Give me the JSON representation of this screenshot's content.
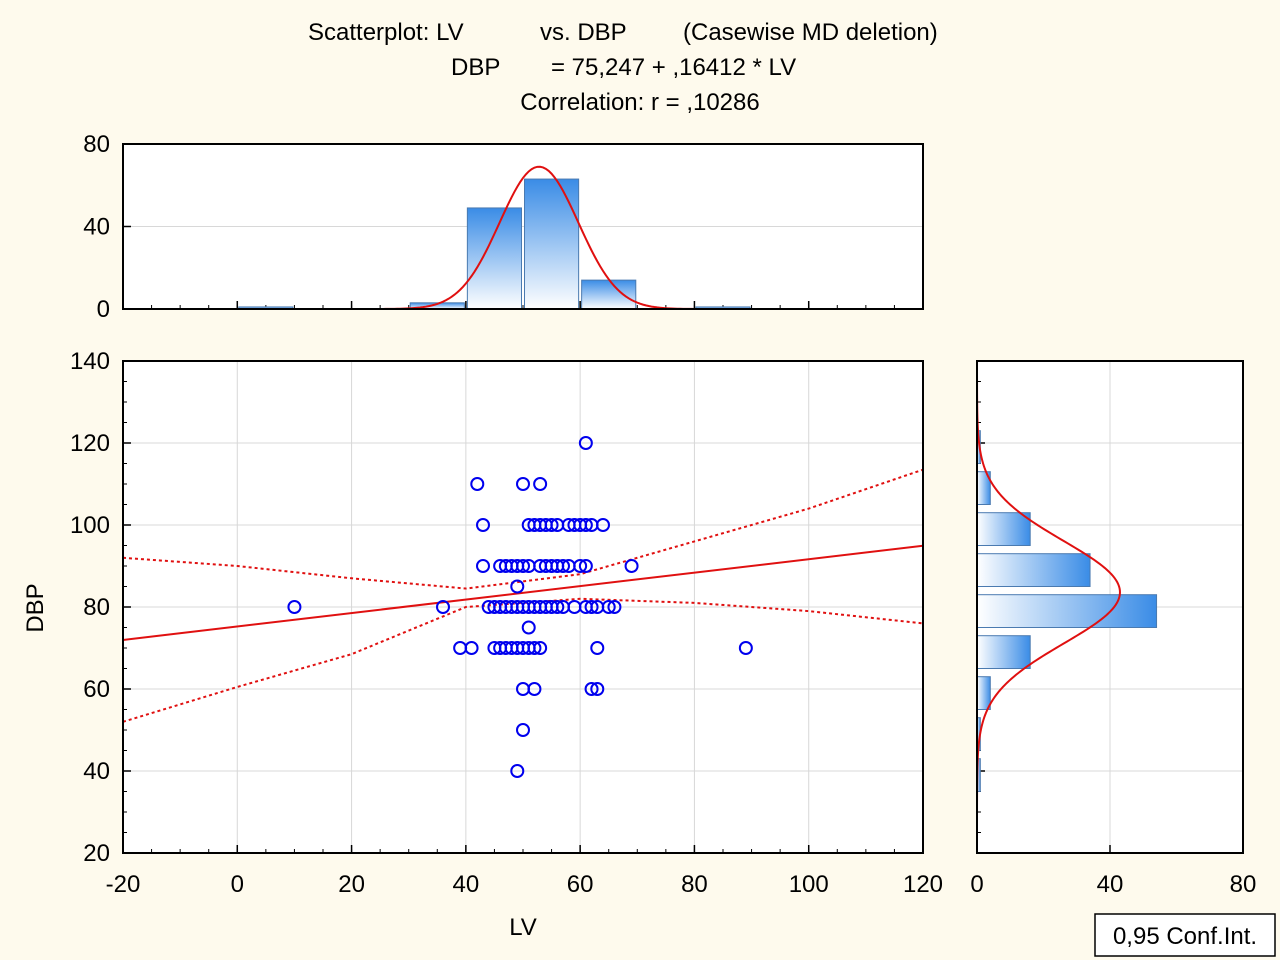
{
  "title": {
    "line1": [
      "Scatterplot: LV",
      "vs. DBP",
      "(Casewise MD deletion)"
    ],
    "line2": [
      "DBP",
      "= 75,247 + ,16412 * LV"
    ],
    "line3": "Correlation: r = ,10286"
  },
  "legend": {
    "label": "0,95 Conf.Int.",
    "position": "bottom-right"
  },
  "colors": {
    "background": "#fefaed",
    "points": "#0000ee",
    "fit": "#e01010",
    "bar_dark": "#3a8ce6",
    "bar_light": "#ffffff",
    "bar_border": "#4a7ab0",
    "grid": "#d8d8d8"
  },
  "chart_data": [
    {
      "id": "scatter",
      "type": "scatter",
      "xlabel": "LV",
      "ylabel": "DBP",
      "xlim": [
        -20,
        120
      ],
      "ylim": [
        20,
        140
      ],
      "xticks": [
        "-20",
        "0",
        "20",
        "40",
        "60",
        "80",
        "100",
        "120"
      ],
      "yticks": [
        "20",
        "40",
        "60",
        "80",
        "100",
        "120",
        "140"
      ],
      "grid": true,
      "points": [
        [
          10,
          80
        ],
        [
          36,
          80
        ],
        [
          44,
          80
        ],
        [
          45,
          80
        ],
        [
          46,
          80
        ],
        [
          47,
          80
        ],
        [
          48,
          80
        ],
        [
          49,
          80
        ],
        [
          50,
          80
        ],
        [
          51,
          80
        ],
        [
          52,
          80
        ],
        [
          53,
          80
        ],
        [
          54,
          80
        ],
        [
          55,
          80
        ],
        [
          56,
          80
        ],
        [
          57,
          80
        ],
        [
          59,
          80
        ],
        [
          61,
          80
        ],
        [
          62,
          80
        ],
        [
          63,
          80
        ],
        [
          65,
          80
        ],
        [
          66,
          80
        ],
        [
          43,
          90
        ],
        [
          46,
          90
        ],
        [
          47,
          90
        ],
        [
          48,
          90
        ],
        [
          49,
          90
        ],
        [
          50,
          90
        ],
        [
          51,
          90
        ],
        [
          53,
          90
        ],
        [
          54,
          90
        ],
        [
          55,
          90
        ],
        [
          56,
          90
        ],
        [
          57,
          90
        ],
        [
          58,
          90
        ],
        [
          60,
          90
        ],
        [
          61,
          90
        ],
        [
          69,
          90
        ],
        [
          43,
          100
        ],
        [
          51,
          100
        ],
        [
          52,
          100
        ],
        [
          53,
          100
        ],
        [
          54,
          100
        ],
        [
          55,
          100
        ],
        [
          56,
          100
        ],
        [
          58,
          100
        ],
        [
          59,
          100
        ],
        [
          60,
          100
        ],
        [
          61,
          100
        ],
        [
          62,
          100
        ],
        [
          64,
          100
        ],
        [
          42,
          110
        ],
        [
          50,
          110
        ],
        [
          53,
          110
        ],
        [
          61,
          120
        ],
        [
          39,
          70
        ],
        [
          41,
          70
        ],
        [
          45,
          70
        ],
        [
          46,
          70
        ],
        [
          47,
          70
        ],
        [
          48,
          70
        ],
        [
          49,
          70
        ],
        [
          50,
          70
        ],
        [
          51,
          70
        ],
        [
          52,
          70
        ],
        [
          53,
          70
        ],
        [
          63,
          70
        ],
        [
          89,
          70
        ],
        [
          49,
          85
        ],
        [
          51,
          75
        ],
        [
          50,
          60
        ],
        [
          52,
          60
        ],
        [
          62,
          60
        ],
        [
          63,
          60
        ],
        [
          50,
          50
        ],
        [
          49,
          40
        ]
      ],
      "regression": {
        "intercept": 75.247,
        "slope": 0.16412
      },
      "confidence_band": {
        "lower": [
          [
            -20,
            52
          ],
          [
            0,
            60.5
          ],
          [
            20,
            68.5
          ],
          [
            40,
            80
          ],
          [
            60,
            82
          ],
          [
            80,
            81
          ],
          [
            100,
            79
          ],
          [
            120,
            76
          ]
        ],
        "upper": [
          [
            -20,
            92
          ],
          [
            0,
            90
          ],
          [
            20,
            87
          ],
          [
            40,
            84.5
          ],
          [
            60,
            88
          ],
          [
            80,
            96
          ],
          [
            100,
            104
          ],
          [
            120,
            113.5
          ]
        ]
      }
    },
    {
      "id": "top-histogram",
      "type": "bar",
      "variable": "LV",
      "ylim": [
        0,
        80
      ],
      "yticks": [
        "0",
        "40",
        "80"
      ],
      "bins": [
        {
          "from": 0,
          "to": 10,
          "count": 1
        },
        {
          "from": 30,
          "to": 40,
          "count": 3
        },
        {
          "from": 40,
          "to": 50,
          "count": 49
        },
        {
          "from": 50,
          "to": 60,
          "count": 63
        },
        {
          "from": 60,
          "to": 70,
          "count": 14
        },
        {
          "from": 80,
          "to": 90,
          "count": 1
        }
      ],
      "normal_fit": {
        "mean": 52.8,
        "sd": 6.9,
        "peak": 69
      }
    },
    {
      "id": "right-histogram",
      "type": "bar",
      "orientation": "horizontal",
      "variable": "DBP",
      "xlim": [
        0,
        80
      ],
      "xticks": [
        "0",
        "40",
        "80"
      ],
      "bins": [
        {
          "from": 35,
          "to": 43,
          "count": 1
        },
        {
          "from": 45,
          "to": 53,
          "count": 1
        },
        {
          "from": 55,
          "to": 63,
          "count": 4
        },
        {
          "from": 65,
          "to": 73,
          "count": 16
        },
        {
          "from": 75,
          "to": 83,
          "count": 54
        },
        {
          "from": 85,
          "to": 93,
          "count": 34
        },
        {
          "from": 95,
          "to": 103,
          "count": 16
        },
        {
          "from": 105,
          "to": 113,
          "count": 4
        },
        {
          "from": 115,
          "to": 123,
          "count": 1
        }
      ],
      "normal_fit": {
        "mean": 83.6,
        "sd": 12.5,
        "peak": 43
      }
    }
  ]
}
